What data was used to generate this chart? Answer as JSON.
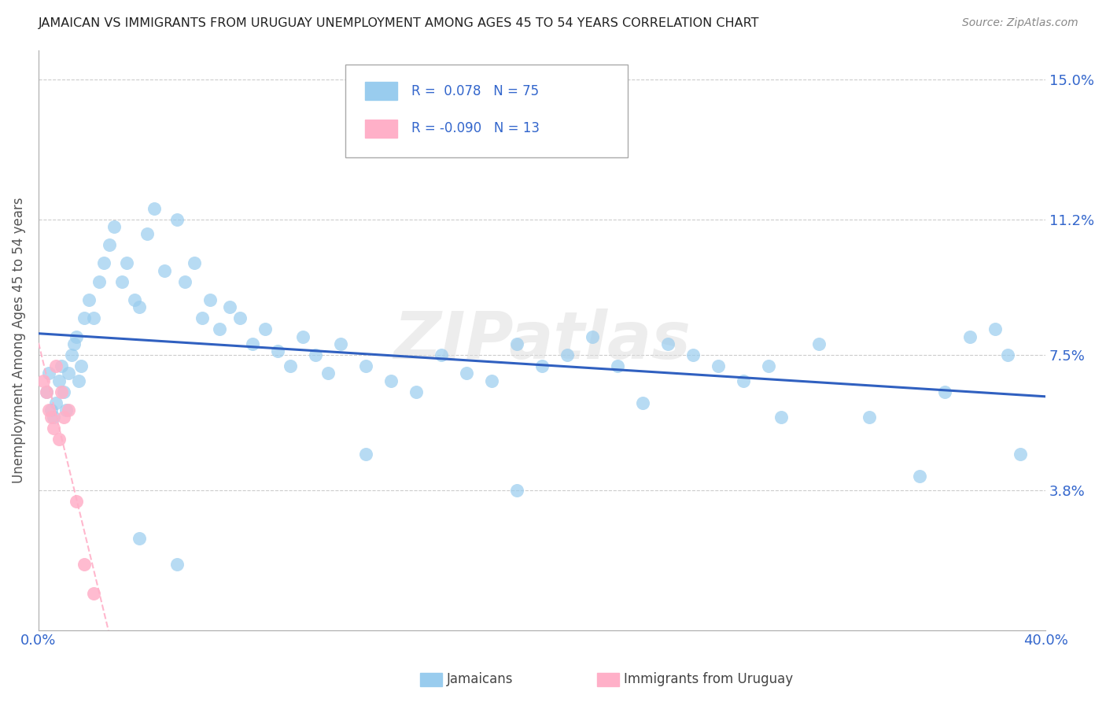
{
  "title": "JAMAICAN VS IMMIGRANTS FROM URUGUAY UNEMPLOYMENT AMONG AGES 45 TO 54 YEARS CORRELATION CHART",
  "source": "Source: ZipAtlas.com",
  "ylabel": "Unemployment Among Ages 45 to 54 years",
  "xmin": 0.0,
  "xmax": 0.4,
  "ymin": 0.0,
  "ymax": 0.158,
  "yticks": [
    0.038,
    0.075,
    0.112,
    0.15
  ],
  "ytick_labels": [
    "3.8%",
    "7.5%",
    "11.2%",
    "15.0%"
  ],
  "watermark": "ZIPatlas",
  "blue_line_color": "#3060C0",
  "pink_line_color": "#FFB0C8",
  "blue_scatter_color": "#99CCEE",
  "pink_scatter_color": "#FFB0C8",
  "background_color": "#FFFFFF",
  "grid_color": "#CCCCCC",
  "jamaicans_x": [
    0.003,
    0.004,
    0.005,
    0.006,
    0.007,
    0.008,
    0.009,
    0.01,
    0.011,
    0.012,
    0.013,
    0.014,
    0.015,
    0.016,
    0.017,
    0.018,
    0.02,
    0.022,
    0.024,
    0.026,
    0.028,
    0.03,
    0.033,
    0.035,
    0.038,
    0.04,
    0.043,
    0.046,
    0.05,
    0.055,
    0.058,
    0.062,
    0.065,
    0.068,
    0.072,
    0.076,
    0.08,
    0.085,
    0.09,
    0.095,
    0.1,
    0.105,
    0.11,
    0.115,
    0.12,
    0.13,
    0.14,
    0.15,
    0.16,
    0.17,
    0.18,
    0.19,
    0.2,
    0.21,
    0.22,
    0.23,
    0.24,
    0.25,
    0.26,
    0.27,
    0.28,
    0.29,
    0.31,
    0.33,
    0.35,
    0.36,
    0.37,
    0.38,
    0.385,
    0.39,
    0.04,
    0.055,
    0.13,
    0.19,
    0.295
  ],
  "jamaicans_y": [
    0.065,
    0.07,
    0.06,
    0.058,
    0.062,
    0.068,
    0.072,
    0.065,
    0.06,
    0.07,
    0.075,
    0.078,
    0.08,
    0.068,
    0.072,
    0.085,
    0.09,
    0.085,
    0.095,
    0.1,
    0.105,
    0.11,
    0.095,
    0.1,
    0.09,
    0.088,
    0.108,
    0.115,
    0.098,
    0.112,
    0.095,
    0.1,
    0.085,
    0.09,
    0.082,
    0.088,
    0.085,
    0.078,
    0.082,
    0.076,
    0.072,
    0.08,
    0.075,
    0.07,
    0.078,
    0.072,
    0.068,
    0.065,
    0.075,
    0.07,
    0.068,
    0.078,
    0.072,
    0.075,
    0.08,
    0.072,
    0.062,
    0.078,
    0.075,
    0.072,
    0.068,
    0.072,
    0.078,
    0.058,
    0.042,
    0.065,
    0.08,
    0.082,
    0.075,
    0.048,
    0.025,
    0.018,
    0.048,
    0.038,
    0.058
  ],
  "uruguay_x": [
    0.002,
    0.003,
    0.004,
    0.005,
    0.006,
    0.007,
    0.008,
    0.009,
    0.01,
    0.012,
    0.015,
    0.018,
    0.022
  ],
  "uruguay_y": [
    0.068,
    0.065,
    0.06,
    0.058,
    0.055,
    0.072,
    0.052,
    0.065,
    0.058,
    0.06,
    0.035,
    0.018,
    0.01
  ]
}
